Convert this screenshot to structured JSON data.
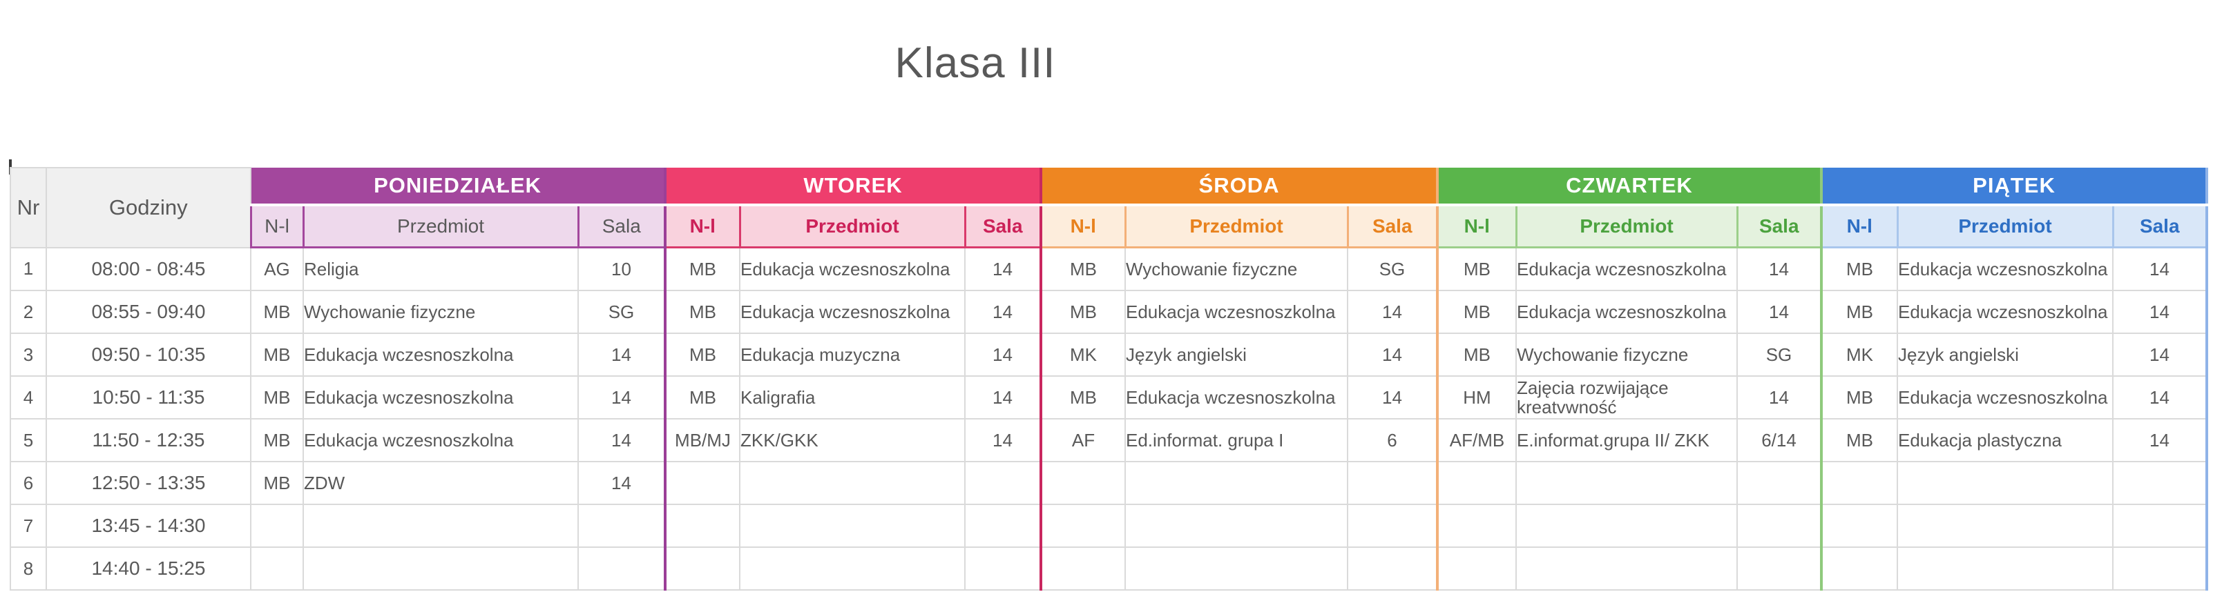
{
  "page": {
    "title": "Klasa III"
  },
  "table": {
    "corner": {
      "nr": "Nr",
      "time": "Godziny"
    },
    "sub": {
      "nl": "N-l",
      "subject": "Przedmiot",
      "room": "Sala"
    },
    "colors": {
      "corner_bg": "#f0f0f0",
      "text_gray": "#595959",
      "grid_border": "#dadada"
    },
    "days": [
      {
        "id": "monday",
        "name": "PONIEDZIAŁEK",
        "header_bg": "#a3479d",
        "sub_bg": "#eed9ec",
        "sub_text": "#595959",
        "sub_border": "#a3479d",
        "separator": "#9b3f97",
        "sub_bold": false
      },
      {
        "id": "tuesday",
        "name": "WTOREK",
        "header_bg": "#ee3e6d",
        "sub_bg": "#f9d2dd",
        "sub_text": "#cc2158",
        "sub_border": "#d93a6b",
        "separator": "#c9275f",
        "sub_bold": true
      },
      {
        "id": "wednesday",
        "name": "ŚRODA",
        "header_bg": "#ee8621",
        "sub_bg": "#fdeddc",
        "sub_text": "#e8821e",
        "sub_border": "#f3b078",
        "separator": "#f3b078",
        "sub_bold": true
      },
      {
        "id": "thursday",
        "name": "CZWARTEK",
        "header_bg": "#5ab54b",
        "sub_bg": "#e4f2de",
        "sub_text": "#4ba23e",
        "sub_border": "#9ccf8a",
        "separator": "#8fca7c",
        "sub_bold": true
      },
      {
        "id": "friday",
        "name": "PIĄTEK",
        "header_bg": "#3e7fd9",
        "sub_bg": "#d9e7f8",
        "sub_text": "#2e6fc4",
        "sub_border": "#a9c6ec",
        "separator": "#8fb3e8",
        "sub_bold": true
      }
    ],
    "rows": [
      {
        "nr": "1",
        "time": "08:00 - 08:45",
        "lessons": [
          [
            "AG",
            "Religia",
            "10"
          ],
          [
            "MB",
            "Edukacja wczesnoszkolna",
            "14"
          ],
          [
            "MB",
            "Wychowanie fizyczne",
            "SG"
          ],
          [
            "MB",
            "Edukacja wczesnoszkolna",
            "14"
          ],
          [
            "MB",
            "Edukacja wczesnoszkolna",
            "14"
          ]
        ]
      },
      {
        "nr": "2",
        "time": "08:55 - 09:40",
        "lessons": [
          [
            "MB",
            "Wychowanie fizyczne",
            "SG"
          ],
          [
            "MB",
            "Edukacja wczesnoszkolna",
            "14"
          ],
          [
            "MB",
            "Edukacja wczesnoszkolna",
            "14"
          ],
          [
            "MB",
            "Edukacja wczesnoszkolna",
            "14"
          ],
          [
            "MB",
            "Edukacja wczesnoszkolna",
            "14"
          ]
        ]
      },
      {
        "nr": "3",
        "time": "09:50 - 10:35",
        "lessons": [
          [
            "MB",
            "Edukacja wczesnoszkolna",
            "14"
          ],
          [
            "MB",
            "Edukacja muzyczna",
            "14"
          ],
          [
            "MK",
            "Język angielski",
            "14"
          ],
          [
            "MB",
            "Wychowanie fizyczne",
            "SG"
          ],
          [
            "MK",
            "Język angielski",
            "14"
          ]
        ]
      },
      {
        "nr": "4",
        "time": "10:50 - 11:35",
        "lessons": [
          [
            "MB",
            "Edukacja wczesnoszkolna",
            "14"
          ],
          [
            "MB",
            "Kaligrafia",
            "14"
          ],
          [
            "MB",
            "Edukacja wczesnoszkolna",
            "14"
          ],
          [
            "HM",
            "Zajęcia rozwijające kreatvwność",
            "14"
          ],
          [
            "MB",
            "Edukacja wczesnoszkolna",
            "14"
          ]
        ]
      },
      {
        "nr": "5",
        "time": "11:50 - 12:35",
        "lessons": [
          [
            "MB",
            "Edukacja wczesnoszkolna",
            "14"
          ],
          [
            "MB/MJ",
            "ZKK/GKK",
            "14"
          ],
          [
            "AF",
            "Ed.informat. grupa I",
            "6"
          ],
          [
            "AF/MB",
            "E.informat.grupa II/ ZKK",
            "6/14"
          ],
          [
            "MB",
            "Edukacja plastyczna",
            "14"
          ]
        ]
      },
      {
        "nr": "6",
        "time": "12:50 - 13:35",
        "lessons": [
          [
            "MB",
            "ZDW",
            "14"
          ],
          [
            "",
            "",
            ""
          ],
          [
            "",
            "",
            ""
          ],
          [
            "",
            "",
            ""
          ],
          [
            "",
            "",
            ""
          ]
        ]
      },
      {
        "nr": "7",
        "time": "13:45 - 14:30",
        "lessons": [
          [
            "",
            "",
            ""
          ],
          [
            "",
            "",
            ""
          ],
          [
            "",
            "",
            ""
          ],
          [
            "",
            "",
            ""
          ],
          [
            "",
            "",
            ""
          ]
        ]
      },
      {
        "nr": "8",
        "time": "14:40 - 15:25",
        "lessons": [
          [
            "",
            "",
            ""
          ],
          [
            "",
            "",
            ""
          ],
          [
            "",
            "",
            ""
          ],
          [
            "",
            "",
            ""
          ],
          [
            "",
            "",
            ""
          ]
        ]
      }
    ]
  }
}
